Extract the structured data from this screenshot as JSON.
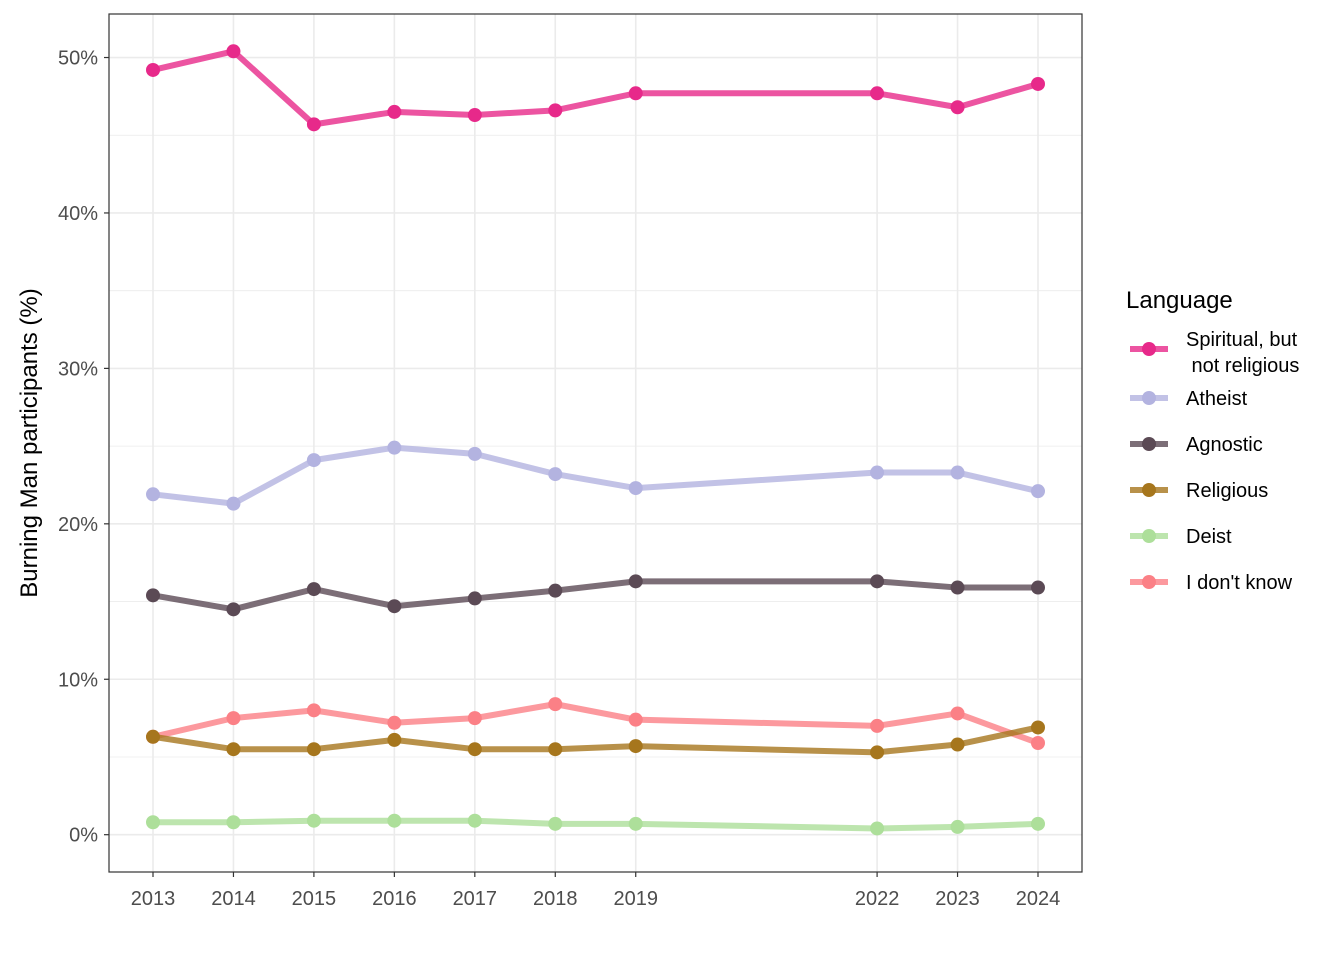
{
  "chart_data": {
    "type": "line",
    "title": "",
    "xlabel": "",
    "ylabel": "Burning Man participants (%)",
    "x": [
      2013,
      2014,
      2015,
      2016,
      2017,
      2018,
      2019,
      2022,
      2023,
      2024
    ],
    "x_tick_labels": [
      "2013",
      "2014",
      "2015",
      "2016",
      "2017",
      "2018",
      "2019",
      "2022",
      "2023",
      "2024"
    ],
    "y_ticks": [
      0,
      10,
      20,
      30,
      40,
      50
    ],
    "y_tick_labels": [
      "0%",
      "10%",
      "20%",
      "30%",
      "40%",
      "50%"
    ],
    "ylim": [
      -2.4,
      52.8
    ],
    "grid": true,
    "legend_position": "right",
    "legend_title": "Language",
    "series": [
      {
        "name": "Spiritual, but\n not religious",
        "color": "#e7298a",
        "values": [
          49.2,
          50.4,
          45.7,
          46.5,
          46.3,
          46.6,
          47.7,
          47.7,
          46.8,
          48.3
        ]
      },
      {
        "name": "Atheist",
        "color": "#b3b3e0",
        "values": [
          21.9,
          21.3,
          24.1,
          24.9,
          24.5,
          23.2,
          22.3,
          23.3,
          23.3,
          22.1
        ]
      },
      {
        "name": "Agnostic",
        "color": "#5b4a55",
        "values": [
          15.4,
          14.5,
          15.8,
          14.7,
          15.2,
          15.7,
          16.3,
          16.3,
          15.9,
          15.9
        ]
      },
      {
        "name": "Religious",
        "color": "#a6761d",
        "values": [
          6.3,
          5.5,
          5.5,
          6.1,
          5.5,
          5.5,
          5.7,
          5.3,
          5.8,
          6.9
        ]
      },
      {
        "name": "Deist",
        "color": "#addf9a",
        "values": [
          0.8,
          0.8,
          0.9,
          0.9,
          0.9,
          0.7,
          0.7,
          0.4,
          0.5,
          0.7
        ]
      },
      {
        "name": "I don't know",
        "color": "#fb8086",
        "values": [
          6.3,
          7.5,
          8.0,
          7.2,
          7.5,
          8.4,
          7.4,
          7.0,
          7.8,
          5.9
        ]
      }
    ]
  }
}
